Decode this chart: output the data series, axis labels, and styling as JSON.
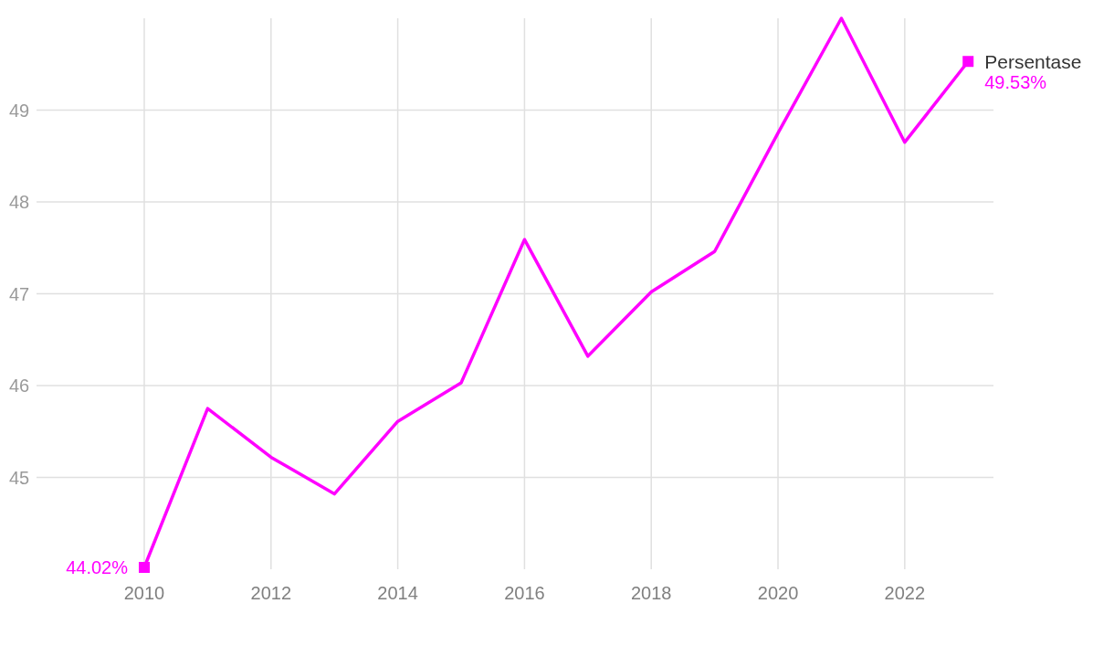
{
  "chart_data": {
    "type": "line",
    "x": [
      2010,
      2011,
      2012,
      2013,
      2014,
      2015,
      2016,
      2017,
      2018,
      2019,
      2020,
      2021,
      2022,
      2023
    ],
    "series": [
      {
        "name": "Persentase",
        "color": "#ff00ff",
        "values": [
          44.02,
          45.75,
          45.22,
          44.82,
          45.61,
          46.03,
          47.59,
          46.32,
          47.02,
          47.46,
          48.75,
          50.0,
          48.65,
          49.53
        ]
      }
    ],
    "xlim": [
      2008.3,
      2023.4
    ],
    "ylim": [
      44,
      50
    ],
    "xticks": [
      2010,
      2012,
      2014,
      2016,
      2018,
      2020,
      2022
    ],
    "yticks": [
      45,
      46,
      47,
      48,
      49
    ],
    "grid": true,
    "annotations": [
      {
        "text": "44.02%",
        "x": 2010,
        "y": 44.02
      },
      {
        "text": "49.53%",
        "x": 2023,
        "y": 49.53
      }
    ]
  }
}
